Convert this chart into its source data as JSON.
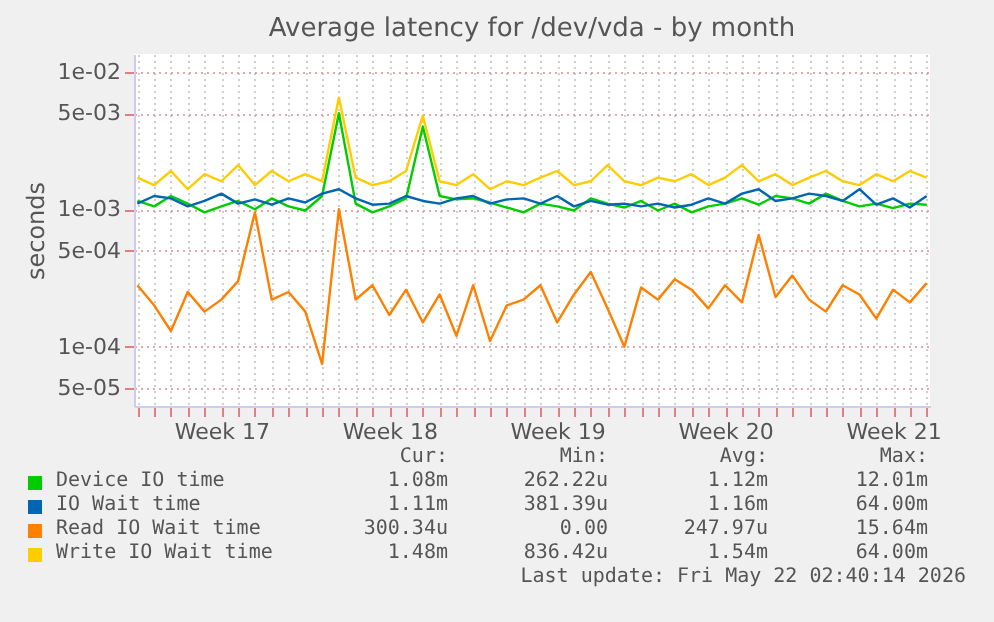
{
  "chart_data": {
    "type": "line",
    "title": "Average latency for /dev/vda - by month",
    "ylabel": "seconds",
    "log": "y",
    "grid": true,
    "legend": "bottom",
    "line_style": "solid",
    "marker": "none",
    "categories": [
      null,
      null,
      null,
      null,
      null,
      "Week 17",
      null,
      null,
      null,
      null,
      null,
      null,
      null,
      null,
      null,
      "Week 18",
      null,
      null,
      null,
      null,
      null,
      null,
      null,
      null,
      null,
      "Week 19",
      null,
      null,
      null,
      null,
      null,
      null,
      null,
      null,
      null,
      "Week 20",
      null,
      null,
      null,
      null,
      null,
      null,
      null,
      null,
      null,
      "Week 21",
      null,
      null
    ],
    "ylim": [
      3.7e-05,
      0.0135
    ],
    "yticks": [
      {
        "value": 5e-05,
        "label": "5e-05"
      },
      {
        "value": 0.0001,
        "label": "1e-04"
      },
      {
        "value": 0.0005,
        "label": "5e-04"
      },
      {
        "value": 0.001,
        "label": "1e-03"
      },
      {
        "value": 0.005,
        "label": "5e-03"
      },
      {
        "value": 0.01,
        "label": "1e-02"
      }
    ],
    "series": [
      {
        "name": "Device IO time",
        "color": "#00cc00",
        "values": [
          0.00115,
          0.00105,
          0.00125,
          0.0011,
          0.00095,
          0.00105,
          0.00115,
          0.001,
          0.0012,
          0.00105,
          0.00098,
          0.00125,
          0.005,
          0.0011,
          0.00095,
          0.00105,
          0.0012,
          0.004,
          0.00125,
          0.00118,
          0.0012,
          0.00112,
          0.00103,
          0.00095,
          0.0011,
          0.00105,
          0.00098,
          0.0012,
          0.0011,
          0.00103,
          0.00115,
          0.00098,
          0.0011,
          0.00095,
          0.00105,
          0.0011,
          0.0012,
          0.00108,
          0.00125,
          0.0012,
          0.0011,
          0.0013,
          0.00115,
          0.00105,
          0.0011,
          0.00102,
          0.0011,
          0.00108
        ]
      },
      {
        "name": "IO Wait time",
        "color": "#0066b3",
        "values": [
          0.0011,
          0.00125,
          0.0012,
          0.00105,
          0.00115,
          0.0013,
          0.0011,
          0.00118,
          0.00108,
          0.0012,
          0.00112,
          0.0013,
          0.0014,
          0.0012,
          0.00108,
          0.0011,
          0.00125,
          0.00115,
          0.0011,
          0.0012,
          0.00125,
          0.0011,
          0.00118,
          0.0012,
          0.0011,
          0.00125,
          0.00105,
          0.00115,
          0.00108,
          0.0011,
          0.00105,
          0.0011,
          0.00103,
          0.00108,
          0.0012,
          0.0011,
          0.0013,
          0.0014,
          0.00115,
          0.0012,
          0.0013,
          0.00125,
          0.00115,
          0.0014,
          0.00108,
          0.0012,
          0.00103,
          0.00125
        ]
      },
      {
        "name": "Read IO Wait time",
        "color": "#ff8000",
        "values": [
          0.00028,
          0.0002,
          0.00013,
          0.00025,
          0.00018,
          0.00022,
          0.0003,
          0.00095,
          0.00022,
          0.00025,
          0.00018,
          7.5e-05,
          0.001,
          0.00022,
          0.00028,
          0.00017,
          0.00026,
          0.00015,
          0.00024,
          0.00012,
          0.00028,
          0.00011,
          0.0002,
          0.00022,
          0.00028,
          0.00015,
          0.00024,
          0.00035,
          0.00019,
          0.0001,
          0.00027,
          0.00022,
          0.00031,
          0.00026,
          0.00019,
          0.00028,
          0.00021,
          0.00065,
          0.00023,
          0.00033,
          0.00022,
          0.00018,
          0.00028,
          0.00024,
          0.00016,
          0.00026,
          0.00021,
          0.00029
        ]
      },
      {
        "name": "Write IO Wait time",
        "color": "#ffcc00",
        "values": [
          0.0017,
          0.0015,
          0.0019,
          0.0014,
          0.0018,
          0.0016,
          0.0021,
          0.0015,
          0.0019,
          0.0016,
          0.0018,
          0.0016,
          0.0065,
          0.0017,
          0.0015,
          0.0016,
          0.0019,
          0.0048,
          0.0016,
          0.0015,
          0.0018,
          0.0014,
          0.0016,
          0.0015,
          0.0017,
          0.0019,
          0.0015,
          0.0016,
          0.0021,
          0.0016,
          0.0015,
          0.0017,
          0.0016,
          0.0018,
          0.0015,
          0.0017,
          0.0021,
          0.0016,
          0.0018,
          0.0015,
          0.0017,
          0.0019,
          0.0016,
          0.0015,
          0.0018,
          0.0016,
          0.0019,
          0.0017
        ]
      }
    ],
    "annotations": [
      "Cur:",
      "Min:",
      "Avg:",
      "Max:",
      "1.08m",
      "262.22u",
      "1.12m",
      "12.01m",
      "1.11m",
      "381.39u",
      "1.16m",
      "64.00m",
      "300.34u",
      "0.00",
      "247.97u",
      "15.64m",
      "1.48m",
      "836.42u",
      "1.54m",
      "64.00m",
      "Last update: Fri May 22 02:40:14 2026"
    ]
  }
}
